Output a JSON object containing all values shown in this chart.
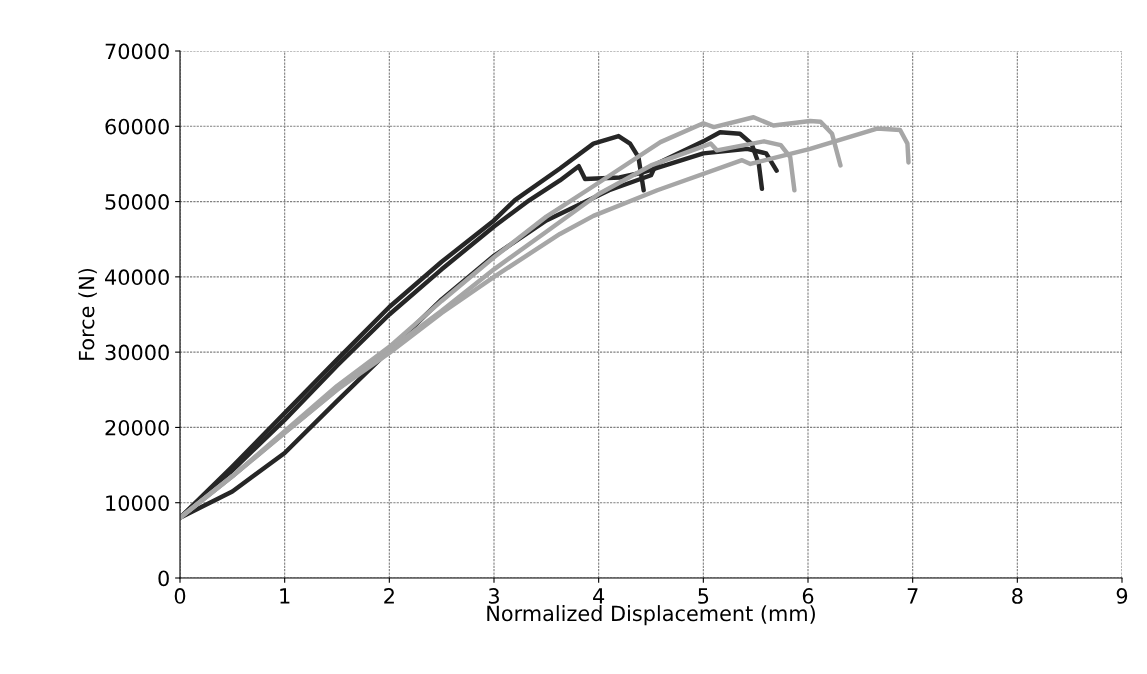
{
  "chart_data": {
    "type": "line",
    "xlabel": "Normalized Displacement (mm)",
    "ylabel": "Force (N)",
    "xlim": [
      0,
      9
    ],
    "ylim": [
      0,
      70000
    ],
    "xticks": [
      0,
      1,
      2,
      3,
      4,
      5,
      6,
      7,
      8,
      9
    ],
    "yticks": [
      0,
      10000,
      20000,
      30000,
      40000,
      50000,
      60000,
      70000
    ],
    "grid": true,
    "legend": false,
    "marker": "none",
    "line_style": "solid",
    "series": [
      {
        "color": "#262626",
        "x": [
          0,
          0.5,
          1,
          1.5,
          2,
          2.5,
          3,
          3.2,
          3.63,
          3.95,
          4.19,
          4.3,
          4.38,
          4.43
        ],
        "values": [
          8000,
          14800,
          21900,
          29000,
          36000,
          42000,
          47500,
          50200,
          54400,
          57700,
          58700,
          57700,
          55900,
          51500
        ]
      },
      {
        "color": "#262626",
        "x": [
          0,
          0.5,
          1,
          1.5,
          2,
          2.5,
          3,
          3.34,
          3.63,
          3.81,
          3.87,
          4.2,
          4.43,
          5.0,
          5.42,
          5.6,
          5.7
        ],
        "values": [
          8000,
          14300,
          21000,
          28200,
          35000,
          41000,
          46700,
          50200,
          52800,
          54700,
          53000,
          53200,
          53900,
          56400,
          57000,
          56400,
          54100
        ]
      },
      {
        "color": "#262626",
        "x": [
          0,
          0.5,
          1,
          1.5,
          2.5,
          3,
          3.5,
          4.1,
          4.5,
          4.55,
          5.0,
          5.16,
          5.35,
          5.46,
          5.53,
          5.56
        ],
        "values": [
          8000,
          11500,
          16600,
          23500,
          37000,
          42800,
          47500,
          51500,
          53500,
          55000,
          58000,
          59200,
          59000,
          57700,
          55000,
          51700
        ]
      },
      {
        "color": "#a6a6a6",
        "x": [
          0,
          0.5,
          1,
          1.5,
          2,
          2.5,
          3,
          3.5,
          4,
          4.59,
          5.0,
          5.1,
          5.48,
          5.67,
          6.02,
          6.12,
          6.23,
          6.31
        ],
        "values": [
          8000,
          13500,
          19500,
          25500,
          30700,
          36800,
          42600,
          48000,
          52500,
          57900,
          60400,
          59900,
          61200,
          60100,
          60700,
          60600,
          59000,
          54800
        ]
      },
      {
        "color": "#a6a6a6",
        "x": [
          0,
          0.5,
          1,
          1.5,
          2,
          2.5,
          3,
          3.5,
          4,
          4.5,
          5.07,
          5.13,
          5.58,
          5.74,
          5.83,
          5.87
        ],
        "values": [
          8000,
          13500,
          19300,
          25000,
          30300,
          35500,
          41000,
          46000,
          51000,
          54800,
          57700,
          56800,
          58000,
          57500,
          55900,
          51500
        ]
      },
      {
        "color": "#a6a6a6",
        "x": [
          0,
          0.5,
          1,
          1.5,
          2,
          2.5,
          3,
          3.63,
          3.95,
          4.56,
          5.37,
          5.45,
          6.02,
          6.66,
          6.88,
          6.95,
          6.96
        ],
        "values": [
          8000,
          13500,
          19300,
          25000,
          29900,
          35200,
          40000,
          45700,
          48100,
          51500,
          55500,
          55000,
          57000,
          59700,
          59500,
          57700,
          55200
        ]
      }
    ]
  }
}
